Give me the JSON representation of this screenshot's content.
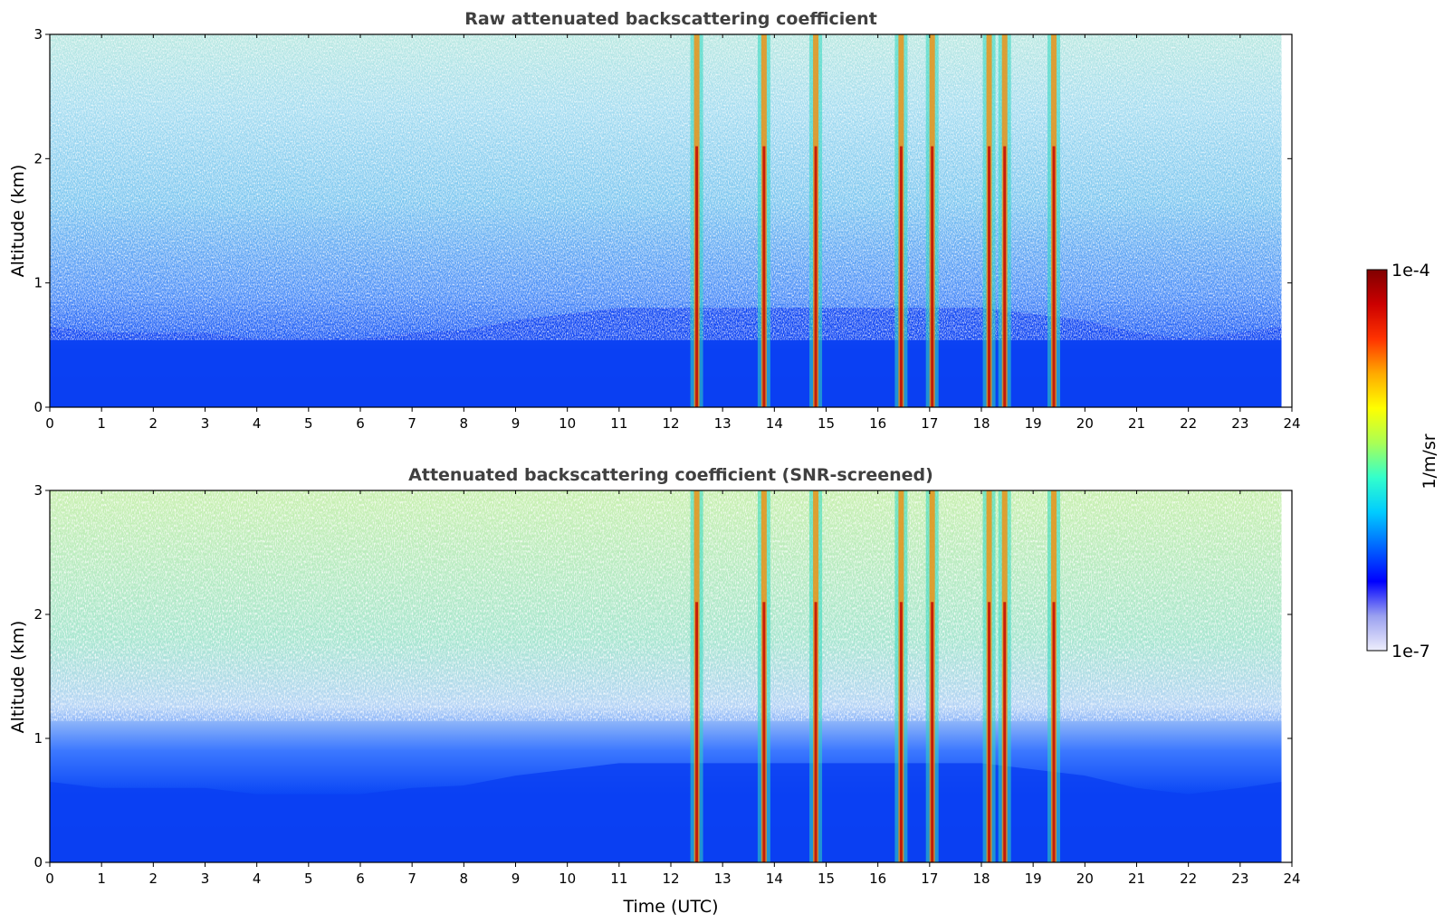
{
  "chart_data": [
    {
      "type": "heatmap",
      "title": "Raw attenuated backscattering coefficient",
      "xlabel": "",
      "ylabel": "Altitude (km)",
      "xlim": [
        0,
        24
      ],
      "ylim": [
        0,
        3
      ],
      "xticks": [
        "0",
        "1",
        "2",
        "3",
        "4",
        "5",
        "6",
        "7",
        "8",
        "9",
        "10",
        "11",
        "12",
        "13",
        "14",
        "15",
        "16",
        "17",
        "18",
        "19",
        "20",
        "21",
        "22",
        "23",
        "24"
      ],
      "yticks": [
        "0",
        "1",
        "2",
        "3"
      ],
      "data_extent_hours": [
        0,
        23.8
      ],
      "grid": false,
      "screened": false
    },
    {
      "type": "heatmap",
      "title": "Attenuated backscattering coefficient (SNR-screened)",
      "xlabel": "Time (UTC)",
      "ylabel": "Altitude (km)",
      "xlim": [
        0,
        24
      ],
      "ylim": [
        0,
        3
      ],
      "xticks": [
        "0",
        "1",
        "2",
        "3",
        "4",
        "5",
        "6",
        "7",
        "8",
        "9",
        "10",
        "11",
        "12",
        "13",
        "14",
        "15",
        "16",
        "17",
        "18",
        "19",
        "20",
        "21",
        "22",
        "23",
        "24"
      ],
      "yticks": [
        "0",
        "1",
        "2",
        "3"
      ],
      "data_extent_hours": [
        0,
        23.8
      ],
      "grid": false,
      "screened": true
    }
  ],
  "colorbar": {
    "label": "1/m/sr",
    "min_label": "1e-7",
    "max_label": "1e-4",
    "scale": "log",
    "colormap": [
      "#eeeefc",
      "#9aa0f0",
      "#0000ff",
      "#0066ff",
      "#00ccff",
      "#33ffcc",
      "#aaff55",
      "#ffff00",
      "#ffaa00",
      "#ff3300",
      "#cc0000",
      "#800000"
    ]
  },
  "features": {
    "cloud_columns_utc": [
      12.5,
      13.8,
      14.8,
      16.45,
      17.05,
      18.15,
      18.45,
      19.4
    ],
    "aerosol_layer_top_km_by_hour": [
      0.65,
      0.6,
      0.6,
      0.6,
      0.55,
      0.55,
      0.55,
      0.6,
      0.62,
      0.7,
      0.75,
      0.8,
      0.8,
      0.8,
      0.8,
      0.8,
      0.8,
      0.8,
      0.8,
      0.75,
      0.7,
      0.6,
      0.55,
      0.6,
      0.65
    ]
  }
}
